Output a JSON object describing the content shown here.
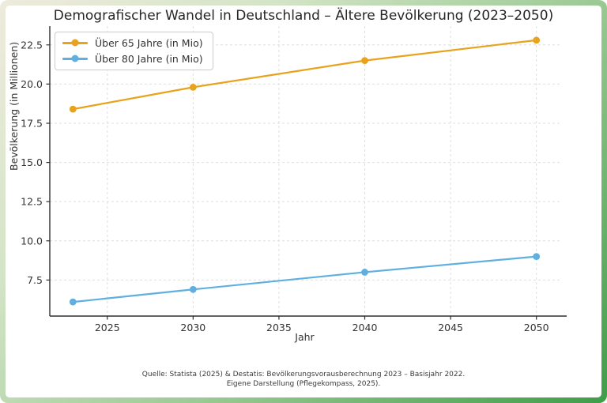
{
  "title": "Demografischer Wandel in Deutschland – Ältere Bevölkerung (2023–2050)",
  "chart_data": {
    "type": "line",
    "x": [
      2023,
      2030,
      2040,
      2050
    ],
    "series": [
      {
        "name": "Über 65 Jahre (in Mio)",
        "values": [
          18.4,
          19.8,
          21.5,
          22.8
        ],
        "color": "#E8A21C"
      },
      {
        "name": "Über 80 Jahre (in Mio)",
        "values": [
          6.1,
          6.9,
          8.0,
          9.0
        ],
        "color": "#5FB0E1"
      }
    ],
    "title": "Demografischer Wandel in Deutschland – Ältere Bevölkerung (2023–2050)",
    "xlabel": "Jahr",
    "ylabel": "Bevölkerung (in Millionen)",
    "xlim": [
      2021.65,
      2051.35
    ],
    "ylim": [
      5.2,
      23.7
    ],
    "xticks": [
      2025,
      2030,
      2035,
      2040,
      2045,
      2050
    ],
    "xtick_labels": [
      "2025",
      "2030",
      "2035",
      "2040",
      "2045",
      "2050"
    ],
    "yticks": [
      7.5,
      10.0,
      12.5,
      15.0,
      17.5,
      20.0,
      22.5
    ],
    "ytick_labels": [
      "7.5",
      "10.0",
      "12.5",
      "15.0",
      "17.5",
      "20.0",
      "22.5"
    ],
    "grid": true,
    "legend_position": "upper left"
  },
  "footer": {
    "line1": "Quelle: Statista (2025) & Destatis: Bevölkerungsvorausberechnung 2023 – Basisjahr 2022.",
    "line2": "Eigene Darstellung (Pflegekompass, 2025)."
  },
  "colors": {
    "series_over_65": "#E8A21C",
    "series_over_80": "#5FB0E1",
    "grid": "#dedede",
    "spine": "#2f2f2f",
    "frame_green": "#3f9d48",
    "frame_cream": "#eeebdc"
  }
}
